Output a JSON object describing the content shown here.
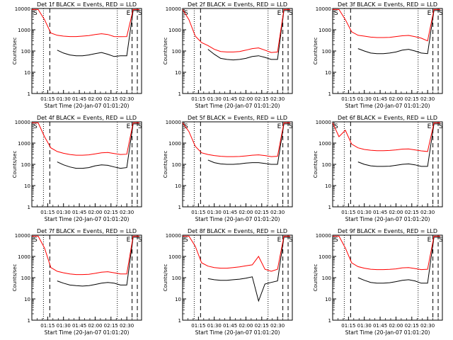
{
  "figure": {
    "xlabel": "Start Time (20-Jan-07 01:01:20)",
    "ylabel": "Counts/sec",
    "x_tick_labels": [
      "01:15",
      "01:30",
      "01:45",
      "02:00",
      "02:15",
      "02:30"
    ],
    "y_tick_labels": [
      "1",
      "10",
      "100",
      "1000",
      "10000"
    ],
    "region_markers": [
      "S",
      "E",
      "S"
    ],
    "colors": {
      "events": "#000000",
      "lld": "#ff0000",
      "axes": "#000000",
      "background": "#ffffff"
    }
  },
  "chart_data": [
    {
      "type": "line",
      "title": "Det 1f BLACK = Events, RED = LLD",
      "xlabel": "Start Time (20-Jan-07 01:01:20)",
      "ylabel": "Counts/sec",
      "y_scale": "log",
      "ylim": [
        1,
        10000
      ],
      "x": [
        "01:00",
        "01:06",
        "01:12",
        "01:18",
        "01:24",
        "01:30",
        "01:36",
        "01:42",
        "01:48",
        "01:54",
        "02:00",
        "02:06",
        "02:12",
        "02:18",
        "02:24",
        "02:30",
        "02:36",
        "02:42"
      ],
      "series": [
        {
          "name": "Events",
          "color": "#000000",
          "values": [
            null,
            null,
            null,
            null,
            110,
            80,
            65,
            60,
            60,
            65,
            75,
            85,
            70,
            55,
            60,
            60,
            8000,
            8000
          ]
        },
        {
          "name": "LLD",
          "color": "#ff0000",
          "values": [
            9000,
            9000,
            3000,
            700,
            550,
            500,
            480,
            480,
            500,
            530,
            600,
            650,
            600,
            480,
            470,
            480,
            9000,
            9000
          ]
        }
      ]
    },
    {
      "type": "line",
      "title": "Det 2f BLACK = Events, RED = LLD",
      "xlabel": "Start Time (20-Jan-07 01:01:20)",
      "ylabel": "Counts/sec",
      "y_scale": "log",
      "ylim": [
        1,
        10000
      ],
      "x": [
        "01:00",
        "01:06",
        "01:12",
        "01:18",
        "01:24",
        "01:30",
        "01:36",
        "01:42",
        "01:48",
        "01:54",
        "02:00",
        "02:06",
        "02:12",
        "02:18",
        "02:24",
        "02:30",
        "02:36",
        "02:42"
      ],
      "series": [
        {
          "name": "Events",
          "color": "#000000",
          "values": [
            null,
            null,
            null,
            null,
            120,
            70,
            45,
            40,
            38,
            40,
            45,
            55,
            60,
            50,
            40,
            40,
            8000,
            8000
          ]
        },
        {
          "name": "LLD",
          "color": "#ff0000",
          "values": [
            9000,
            3000,
            500,
            250,
            180,
            120,
            95,
            90,
            90,
            95,
            110,
            130,
            140,
            110,
            85,
            90,
            9000,
            9000
          ]
        }
      ]
    },
    {
      "type": "line",
      "title": "Det 3f BLACK = Events, RED = LLD",
      "xlabel": "Start Time (20-Jan-07 01:01:20)",
      "ylabel": "Counts/sec",
      "y_scale": "log",
      "ylim": [
        1,
        10000
      ],
      "x": [
        "01:00",
        "01:06",
        "01:12",
        "01:18",
        "01:24",
        "01:30",
        "01:36",
        "01:42",
        "01:48",
        "01:54",
        "02:00",
        "02:06",
        "02:12",
        "02:18",
        "02:24",
        "02:30",
        "02:36",
        "02:42"
      ],
      "series": [
        {
          "name": "Events",
          "color": "#000000",
          "values": [
            null,
            null,
            null,
            null,
            130,
            100,
            80,
            75,
            75,
            80,
            90,
            110,
            120,
            100,
            80,
            75,
            8000,
            8000
          ]
        },
        {
          "name": "LLD",
          "color": "#ff0000",
          "values": [
            9000,
            9000,
            3000,
            800,
            550,
            500,
            450,
            430,
            430,
            440,
            480,
            520,
            540,
            470,
            400,
            300,
            9000,
            9000
          ]
        }
      ]
    },
    {
      "type": "line",
      "title": "Det 4f BLACK = Events, RED = LLD",
      "xlabel": "Start Time (20-Jan-07 01:01:20)",
      "ylabel": "Counts/sec",
      "y_scale": "log",
      "ylim": [
        1,
        10000
      ],
      "x": [
        "01:00",
        "01:06",
        "01:12",
        "01:18",
        "01:24",
        "01:30",
        "01:36",
        "01:42",
        "01:48",
        "01:54",
        "02:00",
        "02:06",
        "02:12",
        "02:18",
        "02:24",
        "02:30",
        "02:36",
        "02:42"
      ],
      "series": [
        {
          "name": "Events",
          "color": "#000000",
          "values": [
            null,
            null,
            null,
            null,
            130,
            95,
            75,
            65,
            65,
            70,
            85,
            95,
            90,
            75,
            65,
            70,
            8000,
            8000
          ]
        },
        {
          "name": "LLD",
          "color": "#ff0000",
          "values": [
            9000,
            9000,
            2000,
            600,
            400,
            330,
            290,
            270,
            270,
            280,
            310,
            350,
            360,
            320,
            290,
            300,
            9000,
            9000
          ]
        }
      ]
    },
    {
      "type": "line",
      "title": "Det 5f BLACK = Events, RED = LLD",
      "xlabel": "Start Time (20-Jan-07 01:01:20)",
      "ylabel": "Counts/sec",
      "y_scale": "log",
      "ylim": [
        1,
        10000
      ],
      "x": [
        "01:00",
        "01:06",
        "01:12",
        "01:18",
        "01:24",
        "01:30",
        "01:36",
        "01:42",
        "01:48",
        "01:54",
        "02:00",
        "02:06",
        "02:12",
        "02:18",
        "02:24",
        "02:30",
        "02:36",
        "02:42"
      ],
      "series": [
        {
          "name": "Events",
          "color": "#000000",
          "values": [
            null,
            null,
            null,
            null,
            160,
            120,
            105,
            100,
            100,
            105,
            115,
            120,
            120,
            110,
            100,
            100,
            8000,
            8000
          ]
        },
        {
          "name": "LLD",
          "color": "#ff0000",
          "values": [
            9000,
            3500,
            700,
            350,
            290,
            260,
            240,
            230,
            230,
            235,
            250,
            270,
            280,
            260,
            230,
            240,
            9000,
            9000
          ]
        }
      ]
    },
    {
      "type": "line",
      "title": "Det 6f BLACK = Events, RED = LLD",
      "xlabel": "Start Time (20-Jan-07 01:01:20)",
      "ylabel": "Counts/sec",
      "y_scale": "log",
      "ylim": [
        1,
        10000
      ],
      "x": [
        "01:00",
        "01:06",
        "01:12",
        "01:18",
        "01:24",
        "01:30",
        "01:36",
        "01:42",
        "01:48",
        "01:54",
        "02:00",
        "02:06",
        "02:12",
        "02:18",
        "02:24",
        "02:30",
        "02:36",
        "02:42"
      ],
      "series": [
        {
          "name": "Events",
          "color": "#000000",
          "values": [
            null,
            null,
            null,
            null,
            130,
            100,
            85,
            80,
            80,
            82,
            90,
            100,
            105,
            95,
            80,
            80,
            8000,
            8000
          ]
        },
        {
          "name": "LLD",
          "color": "#ff0000",
          "values": [
            9000,
            2000,
            4000,
            900,
            600,
            500,
            460,
            440,
            440,
            450,
            480,
            520,
            530,
            480,
            430,
            400,
            9000,
            9000
          ]
        }
      ]
    },
    {
      "type": "line",
      "title": "Det 7f BLACK = Events, RED = LLD",
      "xlabel": "Start Time (20-Jan-07 01:01:20)",
      "ylabel": "Counts/sec",
      "y_scale": "log",
      "ylim": [
        1,
        10000
      ],
      "x": [
        "01:00",
        "01:06",
        "01:12",
        "01:18",
        "01:24",
        "01:30",
        "01:36",
        "01:42",
        "01:48",
        "01:54",
        "02:00",
        "02:06",
        "02:12",
        "02:18",
        "02:24",
        "02:30",
        "02:36",
        "02:42"
      ],
      "series": [
        {
          "name": "Events",
          "color": "#000000",
          "values": [
            null,
            null,
            null,
            null,
            70,
            55,
            45,
            42,
            40,
            42,
            48,
            55,
            60,
            55,
            45,
            45,
            8000,
            8000
          ]
        },
        {
          "name": "LLD",
          "color": "#ff0000",
          "values": [
            9000,
            9000,
            2500,
            300,
            200,
            170,
            150,
            140,
            140,
            145,
            160,
            180,
            190,
            170,
            150,
            150,
            9000,
            9000
          ]
        }
      ]
    },
    {
      "type": "line",
      "title": "Det 8f BLACK = Events, RED = LLD",
      "xlabel": "Start Time (20-Jan-07 01:01:20)",
      "ylabel": "Counts/sec",
      "y_scale": "log",
      "ylim": [
        1,
        10000
      ],
      "x": [
        "01:00",
        "01:06",
        "01:12",
        "01:18",
        "01:24",
        "01:30",
        "01:36",
        "01:42",
        "01:48",
        "01:54",
        "02:00",
        "02:06",
        "02:12",
        "02:18",
        "02:24",
        "02:30",
        "02:36",
        "02:42"
      ],
      "series": [
        {
          "name": "Events",
          "color": "#000000",
          "values": [
            null,
            null,
            null,
            null,
            90,
            80,
            75,
            75,
            80,
            85,
            95,
            110,
            8,
            50,
            60,
            70,
            8000,
            8000
          ]
        },
        {
          "name": "LLD",
          "color": "#ff0000",
          "values": [
            9000,
            9000,
            3000,
            500,
            350,
            300,
            280,
            280,
            300,
            320,
            360,
            400,
            1000,
            250,
            200,
            250,
            9000,
            9000
          ]
        }
      ]
    },
    {
      "type": "line",
      "title": "Det 9f BLACK = Events, RED = LLD",
      "xlabel": "Start Time (20-Jan-07 01:01:20)",
      "ylabel": "Counts/sec",
      "y_scale": "log",
      "ylim": [
        1,
        10000
      ],
      "x": [
        "01:00",
        "01:06",
        "01:12",
        "01:18",
        "01:24",
        "01:30",
        "01:36",
        "01:42",
        "01:48",
        "01:54",
        "02:00",
        "02:06",
        "02:12",
        "02:18",
        "02:24",
        "02:30",
        "02:36",
        "02:42"
      ],
      "series": [
        {
          "name": "Events",
          "color": "#000000",
          "values": [
            null,
            null,
            null,
            null,
            100,
            75,
            60,
            55,
            55,
            58,
            65,
            75,
            80,
            70,
            55,
            55,
            8000,
            8000
          ]
        },
        {
          "name": "LLD",
          "color": "#ff0000",
          "values": [
            9000,
            9000,
            2500,
            500,
            330,
            280,
            250,
            240,
            240,
            245,
            260,
            290,
            300,
            270,
            240,
            250,
            9000,
            9000
          ]
        }
      ]
    }
  ]
}
